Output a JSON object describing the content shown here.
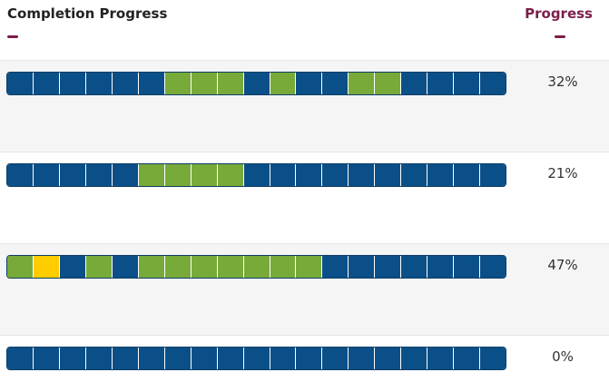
{
  "header": {
    "title": "Completion Progress",
    "progress_label": "Progress"
  },
  "colors": {
    "blue": "#0a4f87",
    "green": "#77aa38",
    "yellow": "#ffcc00",
    "accent": "#7a1e49"
  },
  "rows": [
    {
      "percent_label": "32%",
      "segments": [
        "blue",
        "blue",
        "blue",
        "blue",
        "blue",
        "blue",
        "green",
        "green",
        "green",
        "blue",
        "green",
        "blue",
        "blue",
        "green",
        "green",
        "blue",
        "blue",
        "blue",
        "blue"
      ]
    },
    {
      "percent_label": "21%",
      "segments": [
        "blue",
        "blue",
        "blue",
        "blue",
        "blue",
        "green",
        "green",
        "green",
        "green",
        "blue",
        "blue",
        "blue",
        "blue",
        "blue",
        "blue",
        "blue",
        "blue",
        "blue",
        "blue"
      ]
    },
    {
      "percent_label": "47%",
      "segments": [
        "green",
        "yellow",
        "blue",
        "green",
        "blue",
        "green",
        "green",
        "green",
        "green",
        "green",
        "green",
        "green",
        "blue",
        "blue",
        "blue",
        "blue",
        "blue",
        "blue",
        "blue"
      ]
    },
    {
      "percent_label": "0%",
      "segments": [
        "blue",
        "blue",
        "blue",
        "blue",
        "blue",
        "blue",
        "blue",
        "blue",
        "blue",
        "blue",
        "blue",
        "blue",
        "blue",
        "blue",
        "blue",
        "blue",
        "blue",
        "blue",
        "blue"
      ]
    }
  ]
}
